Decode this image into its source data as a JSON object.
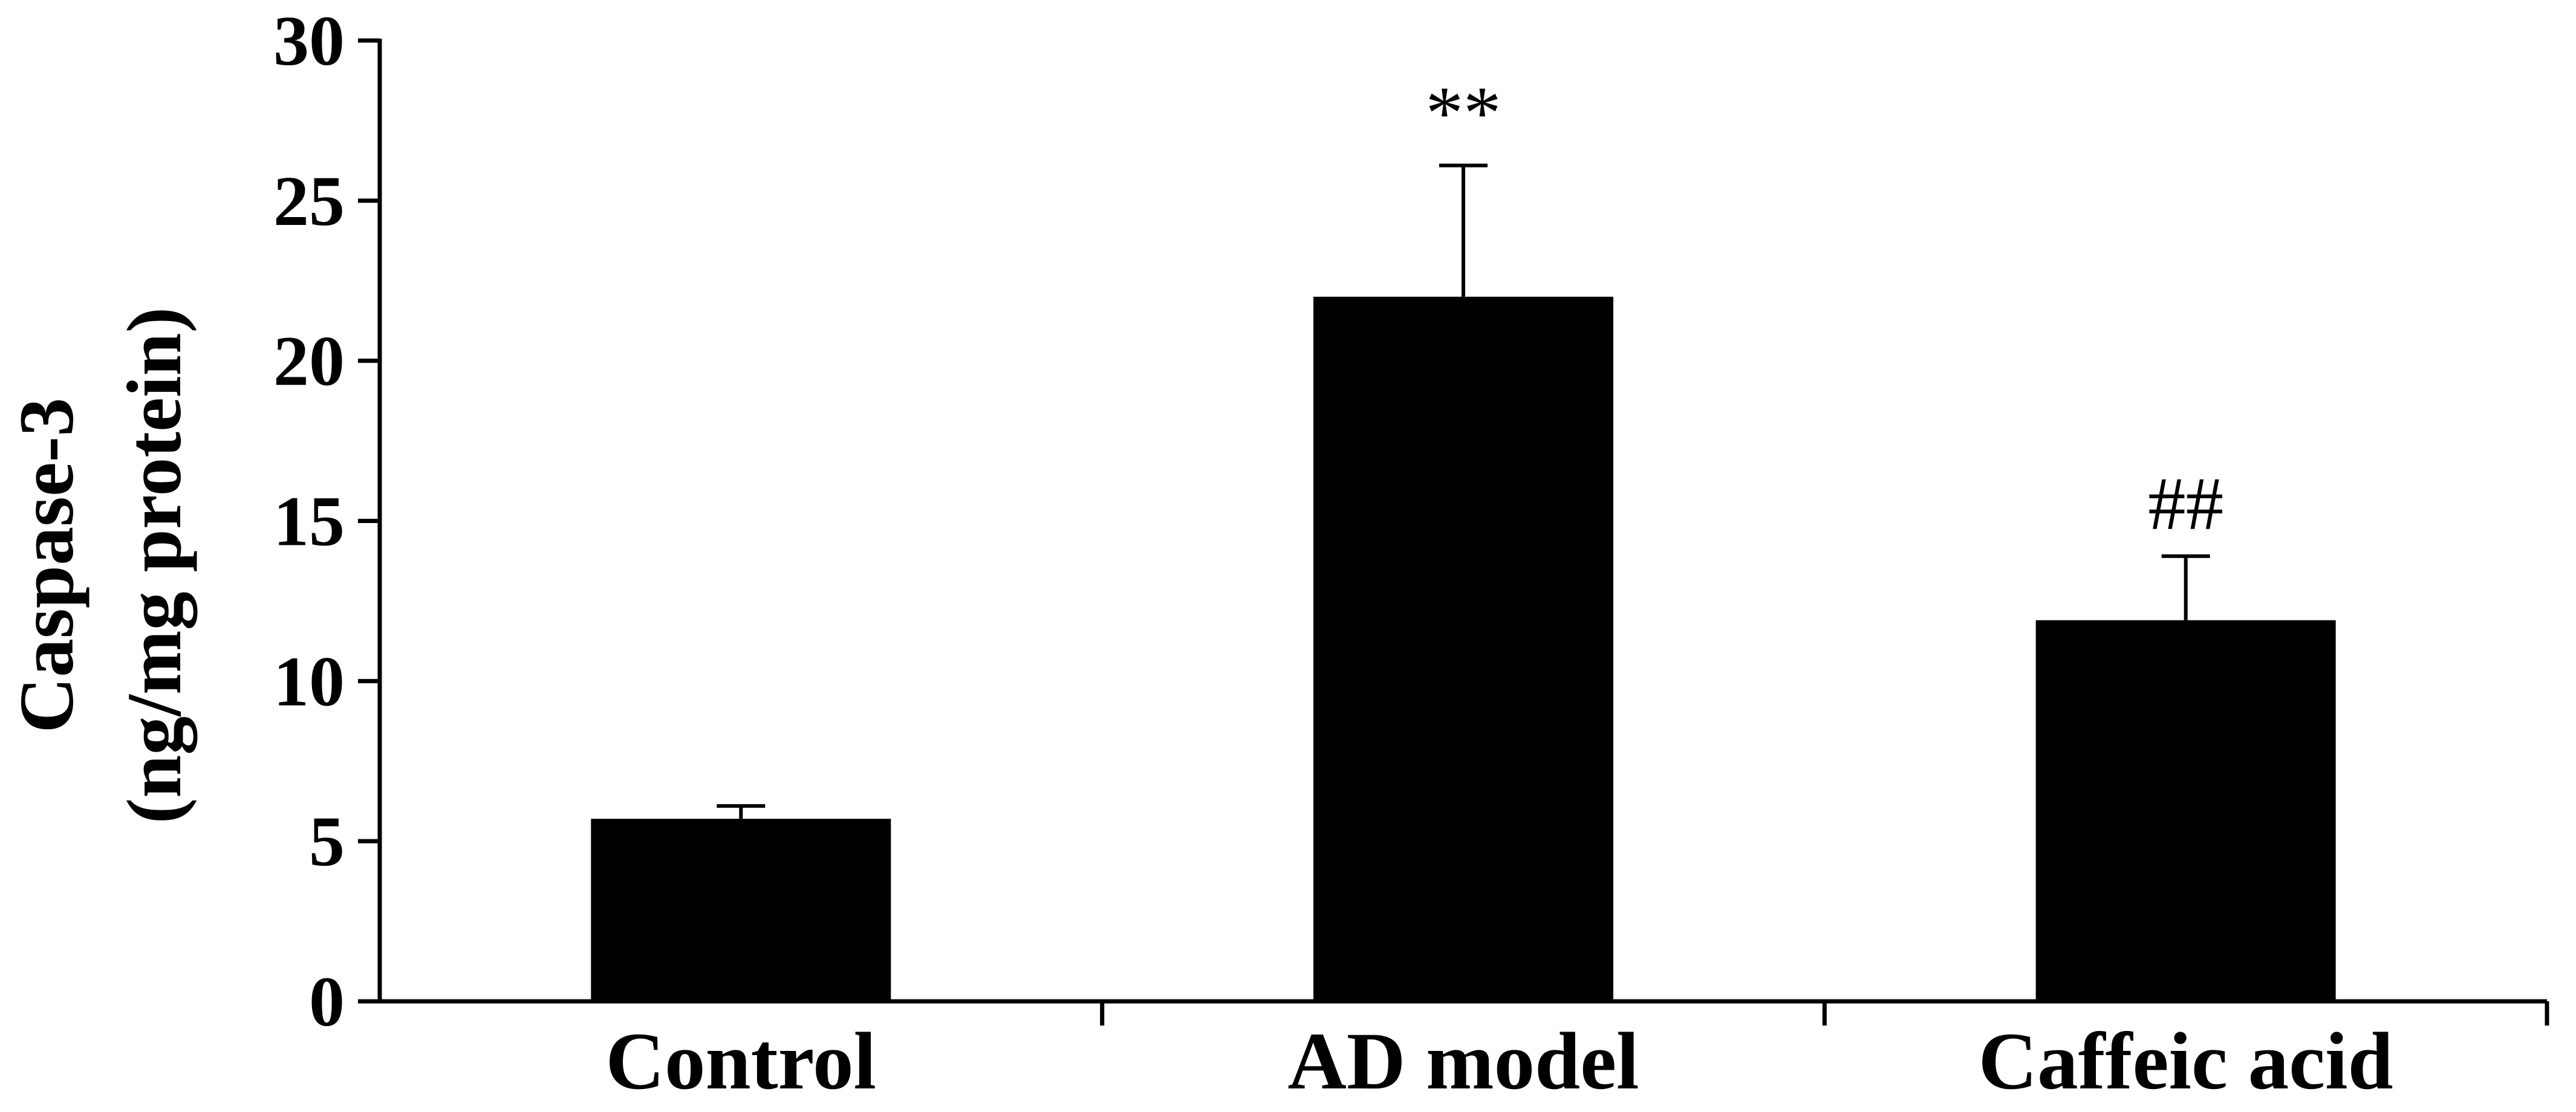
{
  "chart_data": {
    "type": "bar",
    "title": "",
    "xlabel": "",
    "ylabel_lines": [
      "Caspase-3",
      "(ng/mg protein)"
    ],
    "ylim": [
      0,
      30
    ],
    "yticks": [
      "0",
      "5",
      "10",
      "15",
      "20",
      "25",
      "30"
    ],
    "categories": [
      "Control",
      "AD model",
      "Caffeic acid"
    ],
    "values": [
      5.7,
      22.0,
      11.9
    ],
    "errors": [
      0.4,
      4.1,
      2.0
    ],
    "significance": [
      "",
      "**",
      "##"
    ],
    "bar_color": "#000000",
    "grid": false,
    "legend": "none"
  }
}
